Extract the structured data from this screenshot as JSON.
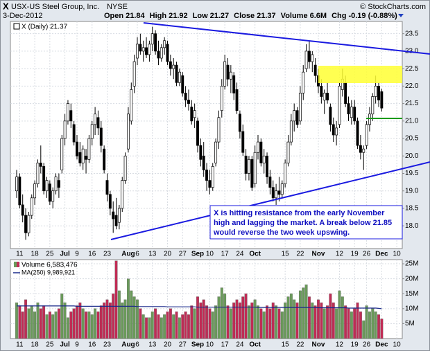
{
  "header": {
    "symbol": "X",
    "name": "USX-US Steel Group, Inc.",
    "exchange": "NYSE",
    "credit": "© StockCharts.com",
    "date": "3-Dec-2012",
    "stats": [
      {
        "label": "Open",
        "value": 21.84
      },
      {
        "label": "High",
        "value": 21.92
      },
      {
        "label": "Low",
        "value": 21.27
      },
      {
        "label": "Close",
        "value": 21.37
      },
      {
        "label": "Volume",
        "value": "6.6M"
      },
      {
        "label": "Chg",
        "value": "-0.19 (-0.88%)"
      }
    ]
  },
  "chart_data": {
    "type": "candlestick",
    "price_legend": "X (Daily) 21.37",
    "volume_legend": "Volume 6,583,476",
    "ma_legend": "MA(250) 9,989,921",
    "annotation": [
      "X is hitting resistance from the early November",
      "high and lagging the market. A break below 21.85",
      "would reverse the two week upswing."
    ],
    "categories": [
      null,
      "11",
      null,
      null,
      null,
      null,
      "18",
      null,
      null,
      null,
      null,
      "25",
      null,
      null,
      null,
      null,
      "Jul",
      null,
      null,
      null,
      "9",
      null,
      null,
      null,
      null,
      "16",
      null,
      null,
      null,
      null,
      "23",
      null,
      null,
      null,
      null,
      null,
      null,
      "Aug",
      null,
      null,
      "6",
      null,
      null,
      null,
      null,
      "13",
      null,
      null,
      null,
      null,
      "20",
      null,
      null,
      null,
      null,
      "27",
      null,
      null,
      null,
      null,
      "Sep",
      null,
      null,
      null,
      "10",
      null,
      null,
      null,
      null,
      "17",
      null,
      null,
      null,
      null,
      "24",
      null,
      null,
      null,
      null,
      "Oct",
      null,
      null,
      null,
      null,
      null,
      null,
      null,
      null,
      null,
      "15",
      null,
      null,
      null,
      null,
      "22",
      null,
      null,
      null,
      null,
      null,
      "Nov",
      null,
      null,
      null,
      null,
      null,
      null,
      "12",
      null,
      null,
      null,
      null,
      "19",
      null,
      null,
      null,
      "26",
      null,
      null,
      null,
      null,
      "Dec",
      null,
      null,
      null,
      null,
      "10"
    ],
    "open": [
      19.0,
      19.4,
      18.6,
      18.3,
      17.8,
      18.3,
      18.8,
      19.2,
      19.8,
      19.7,
      19.0,
      19.2,
      18.7,
      19.0,
      19.3,
      19.6,
      20.5,
      21.0,
      21.3,
      20.9,
      20.4,
      20.1,
      19.8,
      20.0,
      19.9,
      20.5,
      20.9,
      21.1,
      20.8,
      20.2,
      19.3,
      18.9,
      18.4,
      18.3,
      18.1,
      18.5,
      19.3,
      20.2,
      21.0,
      22.0,
      22.8,
      23.2,
      23.0,
      23.1,
      22.9,
      23.2,
      23.5,
      23.0,
      22.8,
      23.1,
      23.2,
      22.7,
      22.5,
      22.6,
      22.1,
      22.3,
      21.8,
      21.6,
      21.4,
      21.1,
      21.0,
      20.3,
      20.0,
      19.6,
      19.3,
      19.1,
      19.8,
      20.4,
      21.3,
      22.0,
      22.6,
      22.2,
      22.3,
      21.9,
      21.2,
      20.7,
      20.0,
      19.5,
      19.9,
      19.2,
      20.1,
      20.4,
      19.8,
      20.0,
      19.4,
      19.1,
      18.8,
      19.0,
      18.9,
      19.2,
      19.8,
      20.4,
      21.0,
      21.3,
      21.0,
      21.8,
      22.5,
      23.0,
      22.7,
      22.6,
      22.3,
      22.0,
      21.6,
      21.8,
      21.4,
      20.9,
      20.6,
      20.9,
      21.9,
      22.1,
      21.5,
      21.1,
      21.4,
      21.0,
      20.3,
      20.1,
      20.3,
      20.9,
      21.2,
      21.7,
      22.0,
      21.84,
      null,
      null,
      null,
      null,
      null
    ],
    "high": [
      19.6,
      19.5,
      18.9,
      18.5,
      18.4,
      18.9,
      19.3,
      19.9,
      20.3,
      19.8,
      19.4,
      19.3,
      19.1,
      19.5,
      19.5,
      20.6,
      21.2,
      21.6,
      21.5,
      21.0,
      20.6,
      20.4,
      20.3,
      20.2,
      20.6,
      21.0,
      21.4,
      21.3,
      21.0,
      20.3,
      19.5,
      19.0,
      18.7,
      18.8,
      18.6,
      19.4,
      20.1,
      21.4,
      22.1,
      22.9,
      23.4,
      23.5,
      23.3,
      23.4,
      23.3,
      23.7,
      23.6,
      23.3,
      23.2,
      23.4,
      23.3,
      22.9,
      22.8,
      22.7,
      22.5,
      22.4,
      22.0,
      21.9,
      21.6,
      21.5,
      21.1,
      20.5,
      20.4,
      19.8,
      19.6,
      19.8,
      20.5,
      21.3,
      22.2,
      22.9,
      22.8,
      22.6,
      22.4,
      22.1,
      21.3,
      20.9,
      20.2,
      20.0,
      20.0,
      20.3,
      20.6,
      20.5,
      20.2,
      20.1,
      19.6,
      19.3,
      19.2,
      19.4,
      19.3,
      19.9,
      20.6,
      21.2,
      21.5,
      21.4,
      22.0,
      22.6,
      23.2,
      23.3,
      23.0,
      22.8,
      22.5,
      22.2,
      21.9,
      22.1,
      21.5,
      21.1,
      21.0,
      22.1,
      22.5,
      22.3,
      21.7,
      21.6,
      21.6,
      21.1,
      20.6,
      20.3,
      21.0,
      21.4,
      21.8,
      22.3,
      22.1,
      21.92,
      null,
      null,
      null,
      null,
      null
    ],
    "low": [
      18.8,
      18.5,
      18.1,
      17.6,
      17.7,
      18.2,
      18.6,
      19.1,
      19.5,
      18.9,
      18.8,
      18.6,
      18.5,
      18.9,
      18.8,
      19.5,
      20.3,
      20.9,
      20.8,
      20.3,
      19.9,
      19.7,
      19.6,
      19.5,
      19.8,
      20.3,
      20.6,
      20.6,
      20.1,
      19.5,
      18.7,
      18.3,
      17.8,
      17.9,
      17.9,
      18.4,
      19.2,
      20.1,
      20.9,
      21.8,
      22.6,
      22.9,
      22.7,
      22.8,
      22.7,
      23.0,
      22.9,
      22.6,
      22.7,
      22.9,
      22.6,
      22.3,
      22.2,
      22.0,
      22.0,
      21.7,
      21.4,
      21.3,
      20.9,
      20.8,
      20.1,
      19.7,
      19.4,
      19.0,
      18.9,
      19.0,
      19.7,
      20.2,
      21.1,
      21.9,
      22.0,
      21.8,
      21.6,
      21.2,
      20.5,
      20.0,
      19.3,
      19.3,
      19.0,
      19.1,
      19.9,
      19.7,
      19.5,
      19.2,
      18.9,
      18.7,
      18.6,
      18.7,
      18.8,
      19.1,
      19.7,
      20.3,
      20.7,
      20.8,
      20.9,
      21.6,
      22.4,
      22.5,
      22.4,
      22.1,
      21.8,
      21.5,
      21.2,
      21.5,
      20.7,
      20.4,
      20.3,
      20.8,
      21.7,
      21.4,
      21.0,
      20.9,
      20.9,
      20.2,
      19.9,
      19.6,
      20.2,
      20.7,
      21.0,
      21.5,
      21.4,
      21.27,
      null,
      null,
      null,
      null,
      null
    ],
    "close": [
      19.4,
      18.6,
      18.3,
      17.8,
      18.3,
      18.8,
      19.2,
      19.8,
      19.7,
      19.0,
      19.3,
      18.7,
      19.0,
      19.4,
      19.1,
      20.5,
      21.0,
      21.5,
      21.0,
      20.4,
      20.0,
      19.8,
      20.2,
      19.9,
      20.5,
      20.9,
      21.2,
      20.8,
      20.3,
      19.6,
      18.9,
      18.5,
      18.2,
      18.0,
      18.5,
      19.3,
      20.0,
      21.2,
      21.9,
      22.7,
      23.2,
      23.0,
      23.1,
      22.9,
      23.2,
      23.5,
      23.0,
      22.8,
      23.1,
      23.3,
      22.7,
      22.5,
      22.6,
      22.1,
      22.4,
      21.8,
      21.6,
      21.5,
      21.0,
      21.3,
      20.3,
      19.9,
      19.6,
      19.3,
      19.1,
      19.7,
      20.4,
      21.1,
      22.0,
      22.7,
      22.2,
      22.4,
      21.8,
      21.3,
      20.7,
      20.1,
      19.5,
      19.9,
      19.1,
      20.1,
      20.4,
      19.8,
      20.0,
      19.4,
      19.1,
      18.8,
      19.0,
      18.9,
      19.2,
      19.8,
      20.4,
      21.0,
      21.3,
      20.9,
      21.8,
      22.4,
      23.0,
      22.7,
      22.9,
      22.3,
      22.0,
      21.7,
      21.8,
      21.6,
      20.9,
      20.6,
      20.8,
      22.0,
      22.2,
      21.5,
      21.2,
      21.4,
      21.0,
      20.3,
      20.1,
      20.2,
      20.9,
      21.2,
      21.7,
      22.0,
      21.6,
      21.37,
      null,
      null,
      null,
      null,
      null
    ],
    "volume": [
      12,
      11,
      9,
      13,
      10,
      11,
      9,
      12,
      10,
      11,
      8,
      9,
      8,
      9,
      10,
      15,
      12,
      7,
      9,
      10,
      11,
      12,
      10,
      9,
      9,
      8,
      10,
      9,
      11,
      12,
      13,
      12,
      15,
      26,
      16,
      12,
      13,
      20,
      16,
      14,
      13,
      10,
      8,
      7,
      7,
      9,
      10,
      8,
      7,
      8,
      9,
      10,
      8,
      9,
      7,
      8,
      9,
      8,
      11,
      10,
      14,
      12,
      13,
      11,
      10,
      9,
      11,
      14,
      17,
      15,
      11,
      10,
      12,
      13,
      12,
      14,
      15,
      11,
      12,
      13,
      11,
      10,
      9,
      11,
      10,
      12,
      11,
      10,
      9,
      12,
      14,
      15,
      13,
      12,
      16,
      17,
      18,
      14,
      12,
      11,
      13,
      12,
      10,
      11,
      15,
      12,
      10,
      16,
      14,
      11,
      10,
      9,
      10,
      12,
      9,
      6,
      11,
      9,
      10,
      9,
      8,
      6.58,
      null,
      null,
      null,
      null,
      null
    ],
    "volume_ma": [
      10.9,
      10.9,
      10.9,
      10.9,
      10.9,
      10.9,
      10.9,
      10.9,
      10.9,
      10.9,
      10.9,
      10.9,
      10.9,
      10.9,
      10.9,
      10.9,
      10.9,
      10.9,
      10.9,
      10.9,
      10.8,
      10.8,
      10.8,
      10.8,
      10.8,
      10.8,
      10.8,
      10.8,
      10.8,
      10.8,
      10.8,
      10.8,
      10.8,
      10.8,
      10.8,
      10.8,
      10.8,
      10.8,
      10.8,
      10.8,
      10.7,
      10.7,
      10.7,
      10.7,
      10.7,
      10.7,
      10.7,
      10.7,
      10.7,
      10.7,
      10.6,
      10.6,
      10.6,
      10.6,
      10.6,
      10.6,
      10.6,
      10.6,
      10.6,
      10.6,
      10.5,
      10.5,
      10.5,
      10.5,
      10.5,
      10.5,
      10.5,
      10.5,
      10.5,
      10.5,
      10.5,
      10.5,
      10.5,
      10.5,
      10.5,
      10.5,
      10.5,
      10.5,
      10.5,
      10.5,
      10.4,
      10.4,
      10.4,
      10.4,
      10.4,
      10.4,
      10.4,
      10.4,
      10.4,
      10.4,
      10.4,
      10.4,
      10.4,
      10.4,
      10.4,
      10.4,
      10.4,
      10.4,
      10.4,
      10.4,
      10.3,
      10.3,
      10.3,
      10.3,
      10.3,
      10.3,
      10.3,
      10.3,
      10.3,
      10.3,
      10.2,
      10.2,
      10.2,
      10.2,
      10.2,
      10.2,
      10.2,
      10.2,
      10.2,
      10.2,
      10.1,
      9.99,
      null,
      null,
      null,
      null,
      null
    ],
    "ylim": [
      17.35,
      23.85
    ],
    "yticks": [
      {
        "value": 18,
        "label": "18.0"
      },
      18.5,
      {
        "value": 19,
        "label": "19.0"
      },
      19.5,
      {
        "value": 20,
        "label": "20.0"
      },
      20.5,
      {
        "value": 21,
        "label": "21.0"
      },
      21.5,
      {
        "value": 22,
        "label": "22.0"
      },
      22.5,
      {
        "value": 23,
        "label": "23.0"
      },
      23.5
    ],
    "volume_ylim": [
      0,
      26.4
    ],
    "volume_yticks": [
      {
        "value": 5,
        "label": "5M"
      },
      {
        "value": 10,
        "label": "10M"
      },
      {
        "value": 15,
        "label": "15M"
      },
      {
        "value": 20,
        "label": "20M"
      },
      {
        "value": 25,
        "label": "25M"
      }
    ],
    "grid": true,
    "up_color": "#6a9a5a",
    "down_color": "#c02c55",
    "ma_color": "#1a2a8a"
  }
}
